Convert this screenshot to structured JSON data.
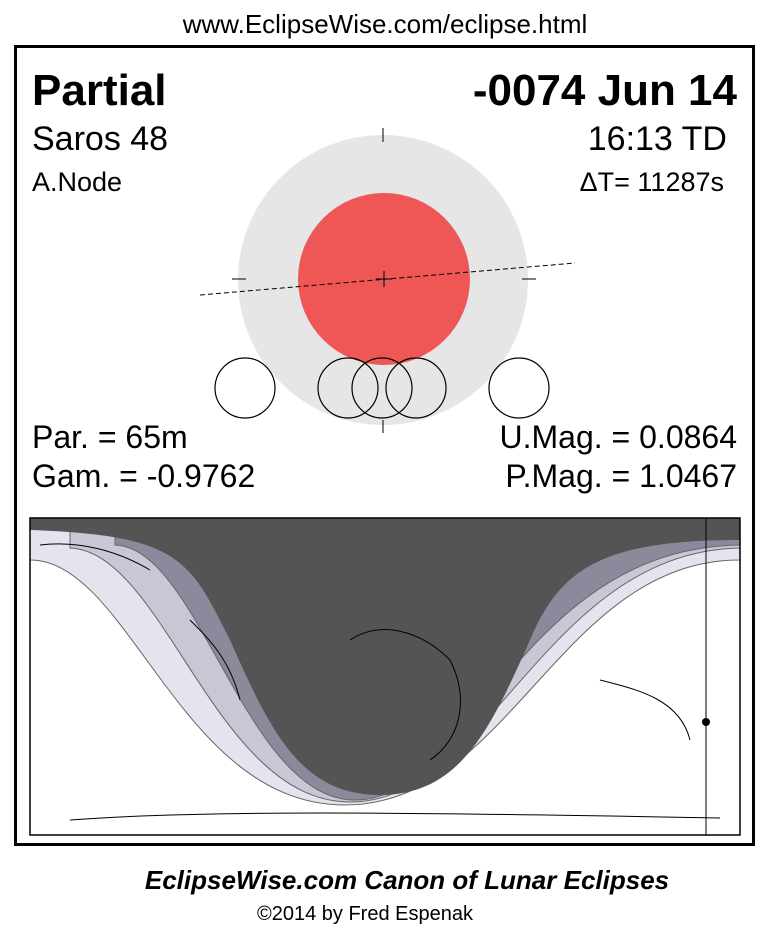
{
  "header": {
    "url": "www.EclipseWise.com/eclipse.html"
  },
  "eclipse": {
    "type": "Partial",
    "date": "-0074 Jun 14",
    "saros": "Saros  48",
    "time": "16:13 TD",
    "node": "A.Node",
    "delta_t": "ΔT=  11287s"
  },
  "stats": {
    "par": "Par. =  65m",
    "umag": "U.Mag. = 0.0864",
    "gam": "Gam. = -0.9762",
    "pmag": "P.Mag. = 1.0467"
  },
  "footer": {
    "title": "EclipseWise.com Canon of Lunar Eclipses",
    "credit": "©2014 by Fred Espenak"
  }
}
